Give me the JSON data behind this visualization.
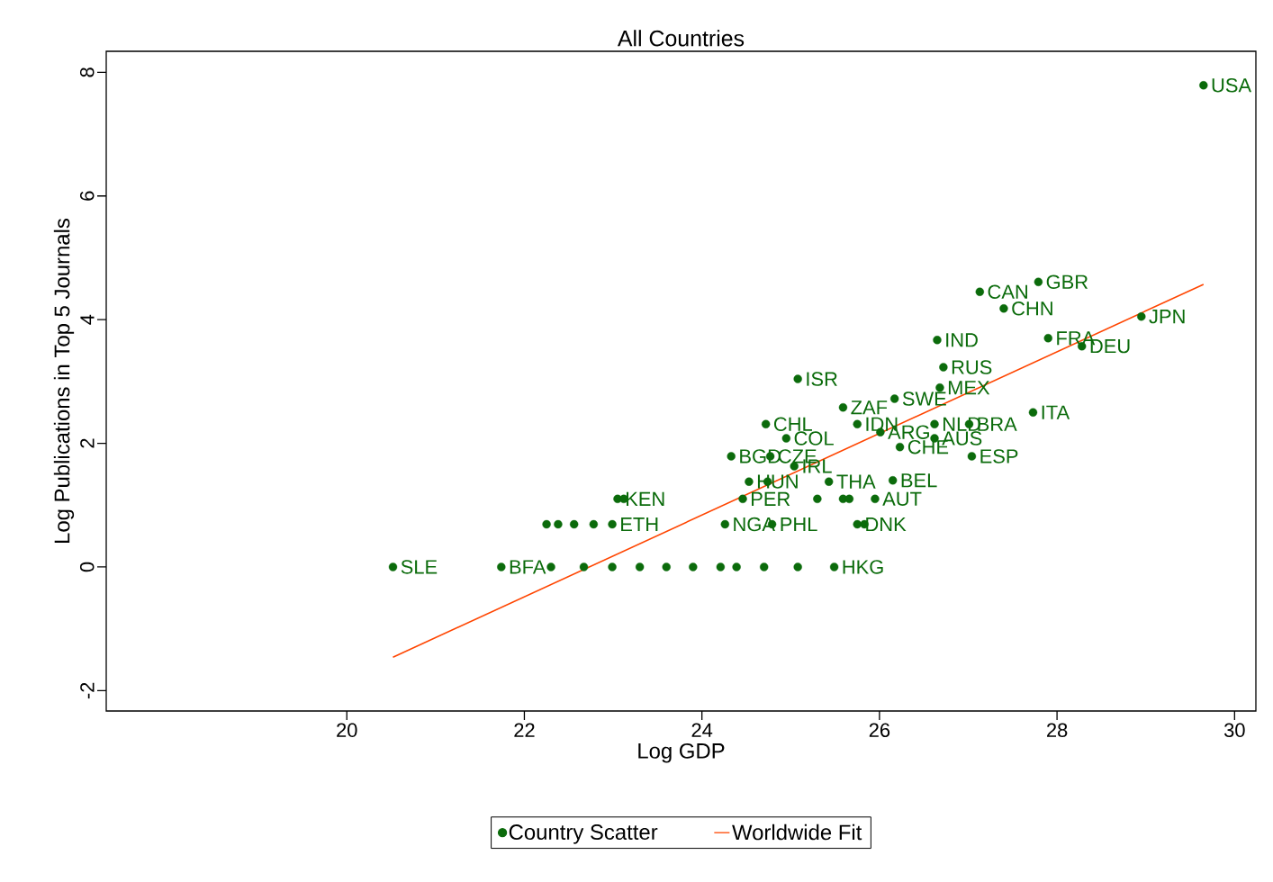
{
  "chart_data": {
    "type": "scatter",
    "title": "All Countries",
    "xlabel": "Log GDP",
    "ylabel": "Log Publications in Top 5 Journals",
    "xlim": [
      17.29,
      30.24
    ],
    "ylim": [
      -2.33,
      8.34
    ],
    "xticks": [
      20,
      22,
      24,
      26,
      28,
      30
    ],
    "yticks": [
      -2,
      0,
      2,
      4,
      6,
      8
    ],
    "legend": "bottom",
    "series": [
      {
        "name": "Country Scatter",
        "marker": "circle",
        "color": "#0b6b0b",
        "x": [
          29.65,
          27.79,
          27.13,
          27.4,
          28.95,
          26.65,
          27.9,
          28.28,
          26.72,
          25.08,
          26.68,
          26.17,
          25.59,
          27.73,
          24.72,
          25.75,
          26.01,
          26.62,
          27.01,
          26.62,
          26.23,
          24.95,
          27.04,
          24.33,
          24.77,
          25.04,
          24.53,
          24.74,
          25.43,
          26.15,
          23.05,
          23.12,
          24.46,
          25.3,
          25.59,
          25.66,
          25.95,
          22.25,
          22.38,
          22.56,
          22.78,
          22.99,
          24.26,
          24.79,
          25.75,
          25.83,
          20.52,
          21.74,
          22.3,
          22.67,
          22.99,
          23.3,
          23.6,
          23.9,
          24.21,
          24.39,
          24.7,
          25.08,
          25.49
        ],
        "values": [
          7.79,
          4.61,
          4.45,
          4.18,
          4.05,
          3.67,
          3.7,
          3.57,
          3.23,
          3.04,
          2.9,
          2.72,
          2.58,
          2.5,
          2.31,
          2.31,
          2.18,
          2.31,
          2.31,
          2.08,
          1.94,
          2.08,
          1.79,
          1.79,
          1.79,
          1.63,
          1.38,
          1.38,
          1.38,
          1.4,
          1.1,
          1.1,
          1.1,
          1.1,
          1.1,
          1.1,
          1.1,
          0.69,
          0.69,
          0.69,
          0.69,
          0.69,
          0.69,
          0.69,
          0.69,
          0.69,
          0,
          0,
          0,
          0,
          0,
          0,
          0,
          0,
          0,
          0,
          0,
          0,
          0
        ],
        "value_labels": [
          "USA",
          "GBR",
          "CAN",
          "CHN",
          "JPN",
          "IND",
          "FRA",
          "DEU",
          "RUS",
          "ISR",
          "MEX",
          "SWE",
          "ZAF",
          "ITA",
          "CHL",
          "IDN",
          "ARG",
          "NLD",
          "BRA",
          "AUS",
          "CHE",
          "COL",
          "ESP",
          "BGD",
          "CZE",
          "IRL",
          "HUN",
          null,
          "THA",
          "BEL",
          "KEN",
          null,
          "PER",
          null,
          null,
          null,
          "AUT",
          null,
          null,
          null,
          null,
          "ETH",
          "NGA",
          "PHL",
          "DNK",
          null,
          "SLE",
          "BFA",
          null,
          null,
          null,
          null,
          null,
          null,
          null,
          null,
          null,
          null,
          "HKG"
        ]
      },
      {
        "name": "Worldwide Fit",
        "type": "line",
        "color": "#ff4500",
        "x": [
          20.52,
          29.65
        ],
        "values": [
          -1.46,
          4.57
        ]
      }
    ]
  }
}
